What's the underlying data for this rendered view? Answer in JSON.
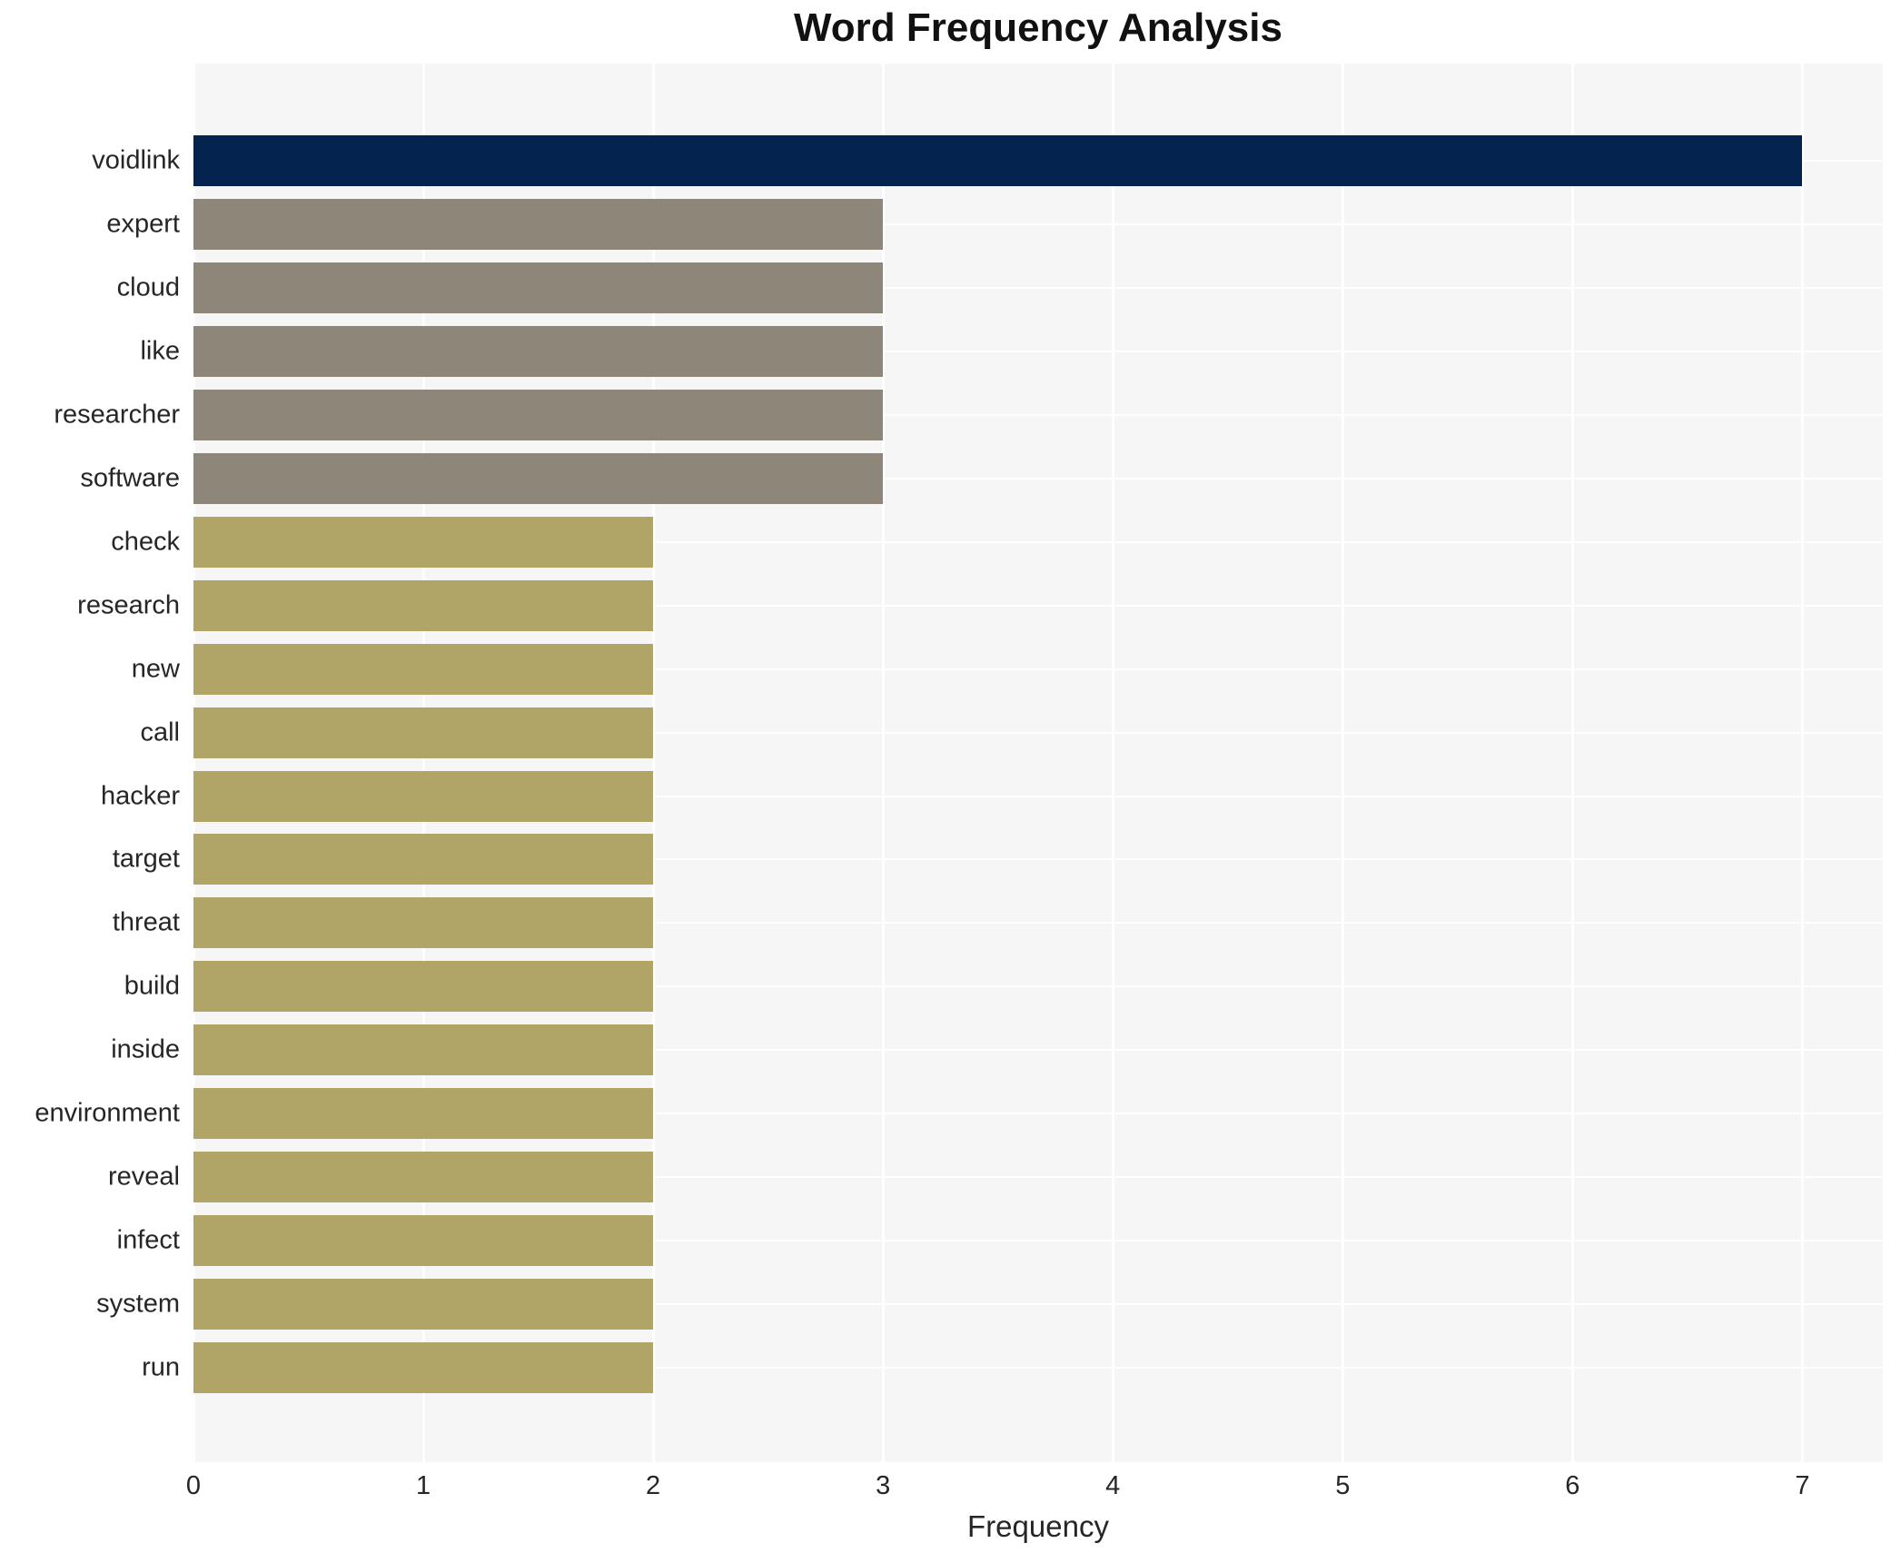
{
  "figure": {
    "title": "Word Frequency Analysis",
    "xlabel": "Frequency"
  },
  "colors": {
    "figure_background": "#ffffff",
    "plot_background": "#f6f6f7",
    "grid": "#ffffff",
    "text": "#262626",
    "title_text": "#111111",
    "bar_navy": "#04234e",
    "bar_gray": "#8e8779",
    "bar_khaki": "#b0a566"
  },
  "chart_data": {
    "type": "bar",
    "orientation": "horizontal",
    "title": "Word Frequency Analysis",
    "xlabel": "Frequency",
    "ylabel": "",
    "categories": [
      "voidlink",
      "expert",
      "cloud",
      "like",
      "researcher",
      "software",
      "check",
      "research",
      "new",
      "call",
      "hacker",
      "target",
      "threat",
      "build",
      "inside",
      "environment",
      "reveal",
      "infect",
      "system",
      "run"
    ],
    "values": [
      7,
      3,
      3,
      3,
      3,
      3,
      2,
      2,
      2,
      2,
      2,
      2,
      2,
      2,
      2,
      2,
      2,
      2,
      2,
      2
    ],
    "bar_colors": [
      "#04234e",
      "#8e8779",
      "#8e8779",
      "#8e8779",
      "#8e8779",
      "#8e8779",
      "#b0a566",
      "#b0a566",
      "#b0a566",
      "#b0a566",
      "#b0a566",
      "#b0a566",
      "#b0a566",
      "#b0a566",
      "#b0a566",
      "#b0a566",
      "#b0a566",
      "#b0a566",
      "#b0a566",
      "#b0a566"
    ],
    "xlim": [
      0,
      7.35
    ],
    "xticks": [
      0,
      1,
      2,
      3,
      4,
      5,
      6,
      7
    ],
    "grid": true,
    "legend": false
  }
}
